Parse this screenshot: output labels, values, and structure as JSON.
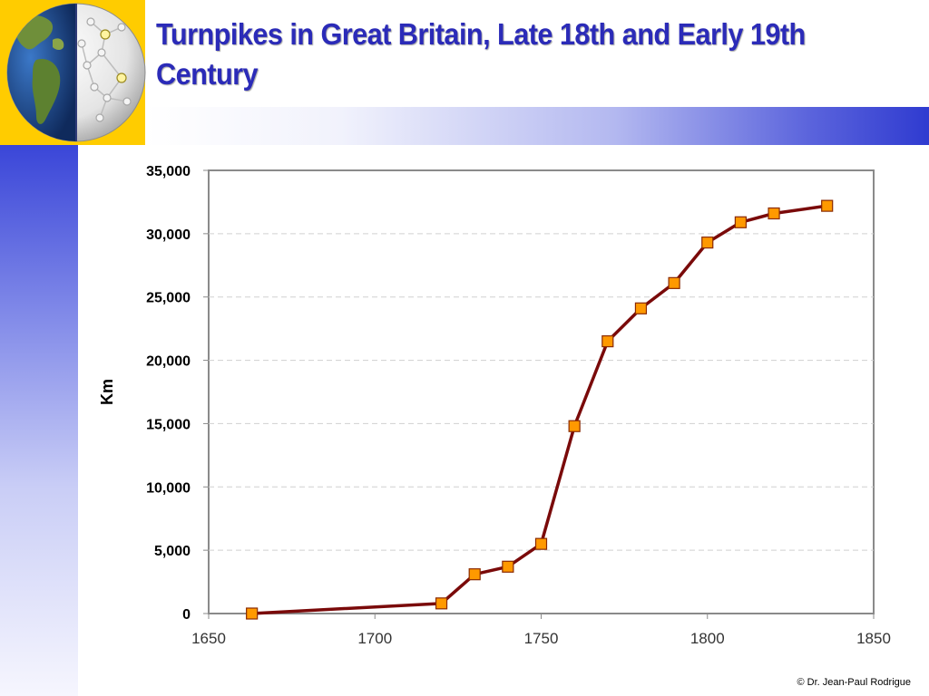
{
  "slide": {
    "title": "Turnpikes in Great Britain, Late 18th and Early 19th Century",
    "copyright": "© Dr. Jean-Paul Rodrigue"
  },
  "colors": {
    "title": "#2b2bb8",
    "accent_yellow": "#ffcc00",
    "accent_blue": "#2f3bd0",
    "line": "#7a0a0a",
    "marker_fill": "#ff9900",
    "marker_stroke": "#8a2a00"
  },
  "icons": [
    "globe-network-icon"
  ],
  "chart_data": {
    "type": "line",
    "ylabel": "Km",
    "xlabel": "",
    "xlim": [
      1650,
      1850
    ],
    "ylim": [
      0,
      35000
    ],
    "xticks": [
      1650,
      1700,
      1750,
      1800,
      1850
    ],
    "yticks": [
      0,
      5000,
      10000,
      15000,
      20000,
      25000,
      30000,
      35000
    ],
    "xtick_labels": [
      "1650",
      "1700",
      "1750",
      "1800",
      "1850"
    ],
    "ytick_labels": [
      "0",
      "5,000",
      "10,000",
      "15,000",
      "20,000",
      "25,000",
      "30,000",
      "35,000"
    ],
    "grid": "horizontal dashed",
    "legend": "none",
    "series": [
      {
        "x": [
          1663,
          1720,
          1730,
          1740,
          1750,
          1760,
          1770,
          1780,
          1790,
          1800,
          1810,
          1820,
          1836
        ],
        "y": [
          0,
          800,
          3100,
          3700,
          5500,
          14800,
          21500,
          24100,
          26100,
          29300,
          30900,
          31600,
          32200
        ]
      }
    ]
  }
}
